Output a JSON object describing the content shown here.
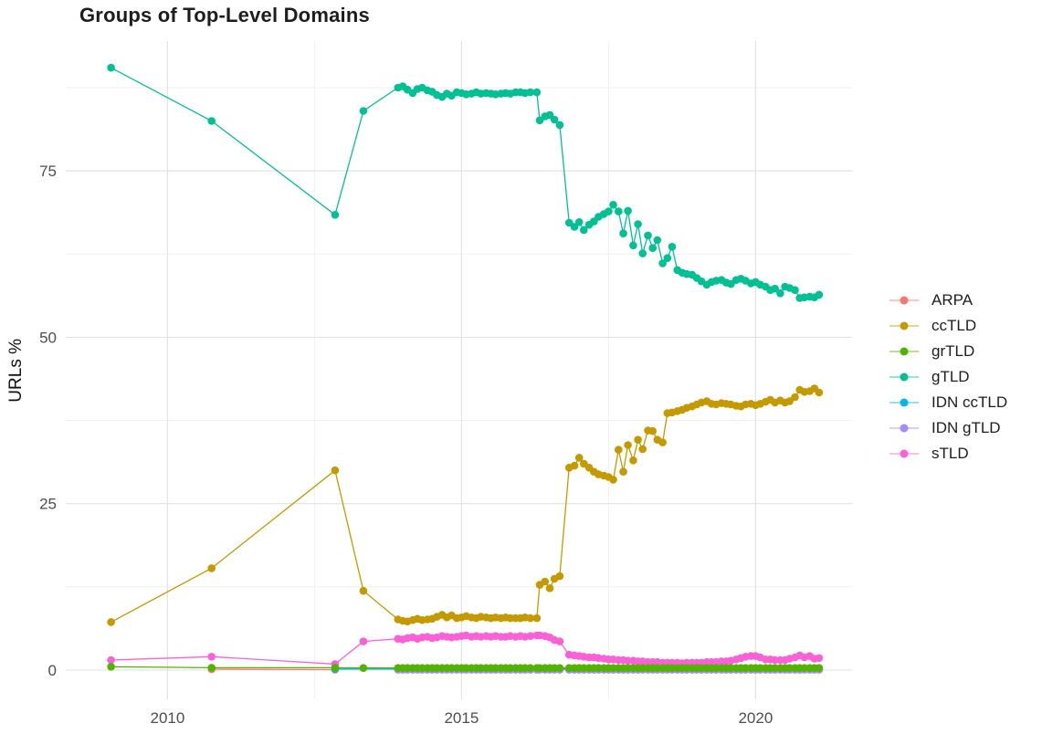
{
  "chart_data": {
    "type": "scatter",
    "title": "Groups of Top-Level Domains",
    "xlabel": "",
    "ylabel": "URLs %",
    "xlim": [
      2008.27,
      2021.64
    ],
    "ylim": [
      -4.4,
      94.5
    ],
    "grid": true,
    "legend_position": "right",
    "colors": {
      "grid_major": "#e3e3e3",
      "grid_minor": "#f1f1f1",
      "axis_text": "#4e4e4e",
      "title_text": "#1d1d1d"
    },
    "x_ticks": {
      "major": [
        2010,
        2015,
        2020
      ],
      "labels": [
        "2010",
        "2015",
        "2020"
      ],
      "minor": [
        2012.5,
        2017.5
      ]
    },
    "y_ticks": {
      "major": [
        0,
        25,
        50,
        75
      ],
      "labels": [
        "0",
        "25",
        "50",
        "75"
      ],
      "minor": [
        12.5,
        37.5,
        62.5,
        87.5
      ]
    },
    "x_dense": [
      2013.92,
      2014.0,
      2014.08,
      2014.17,
      2014.25,
      2014.33,
      2014.42,
      2014.5,
      2014.58,
      2014.67,
      2014.75,
      2014.83,
      2014.92,
      2015.0,
      2015.08,
      2015.17,
      2015.25,
      2015.33,
      2015.42,
      2015.5,
      2015.58,
      2015.67,
      2015.75,
      2015.83,
      2015.92,
      2016.0,
      2016.08,
      2016.17,
      2016.28,
      2016.33,
      2016.42,
      2016.5,
      2016.58,
      2016.67,
      2016.83,
      2016.92,
      2017.0,
      2017.08,
      2017.17,
      2017.25,
      2017.33,
      2017.42,
      2017.5,
      2017.58,
      2017.67,
      2017.75,
      2017.83,
      2017.92,
      2018.0,
      2018.08,
      2018.17,
      2018.25,
      2018.33,
      2018.42,
      2018.5,
      2018.58,
      2018.67,
      2018.75,
      2018.83,
      2018.92,
      2019.0,
      2019.08,
      2019.17,
      2019.25,
      2019.33,
      2019.42,
      2019.5,
      2019.58,
      2019.67,
      2019.75,
      2019.83,
      2019.92,
      2020.0,
      2020.08,
      2020.17,
      2020.25,
      2020.33,
      2020.42,
      2020.5,
      2020.58,
      2020.67,
      2020.75,
      2020.83,
      2020.92,
      2021.0,
      2021.08
    ],
    "draw_order": [
      "ARPA",
      "IDN ccTLD",
      "IDN gTLD",
      "sTLD",
      "ccTLD",
      "gTLD",
      "grTLD"
    ],
    "series": [
      {
        "name": "ARPA",
        "color": "#F8766D",
        "x": [
          2010.75,
          2012.85
        ],
        "y": [
          0.12,
          0.06
        ]
      },
      {
        "name": "ccTLD",
        "color": "#C49A00",
        "x_pre": [
          2009.04,
          2010.75,
          2012.85,
          2013.33
        ],
        "y_pre": [
          7.2,
          15.3,
          30.0,
          11.9
        ],
        "x_ref": "dense",
        "y": [
          7.6,
          7.4,
          7.3,
          7.5,
          7.7,
          7.5,
          7.6,
          7.7,
          8.0,
          8.3,
          7.9,
          8.2,
          7.8,
          7.9,
          8.1,
          7.9,
          7.8,
          8.0,
          7.9,
          7.8,
          7.9,
          7.8,
          7.9,
          7.8,
          7.8,
          7.8,
          7.9,
          7.8,
          7.8,
          12.8,
          13.3,
          12.3,
          13.7,
          14.1,
          30.4,
          30.7,
          31.9,
          31.0,
          30.4,
          29.8,
          29.4,
          29.2,
          29.0,
          28.6,
          33.1,
          29.8,
          33.8,
          31.5,
          34.6,
          33.2,
          36.0,
          35.9,
          34.6,
          34.2,
          38.6,
          38.7,
          38.9,
          39.1,
          39.4,
          39.6,
          39.9,
          40.2,
          40.4,
          40.0,
          39.9,
          40.1,
          40.0,
          39.9,
          39.7,
          39.6,
          39.9,
          40.0,
          39.8,
          40.0,
          40.3,
          40.6,
          40.2,
          40.5,
          40.2,
          40.4,
          41.0,
          42.1,
          41.8,
          41.9,
          42.3,
          41.7
        ]
      },
      {
        "name": "grTLD",
        "color": "#53B400",
        "x_pre": [
          2009.04,
          2010.75,
          2012.85,
          2013.33
        ],
        "y_pre": [
          0.5,
          0.35,
          0.35,
          0.3
        ],
        "x_ref": "dense",
        "y": [
          0.3,
          0.3,
          0.3,
          0.3,
          0.3,
          0.3,
          0.3,
          0.3,
          0.3,
          0.3,
          0.3,
          0.3,
          0.3,
          0.3,
          0.3,
          0.3,
          0.3,
          0.3,
          0.3,
          0.3,
          0.3,
          0.3,
          0.3,
          0.3,
          0.3,
          0.3,
          0.3,
          0.3,
          0.3,
          0.3,
          0.3,
          0.3,
          0.3,
          0.3,
          0.3,
          0.3,
          0.3,
          0.3,
          0.3,
          0.3,
          0.3,
          0.3,
          0.3,
          0.3,
          0.3,
          0.3,
          0.3,
          0.3,
          0.3,
          0.3,
          0.3,
          0.3,
          0.3,
          0.3,
          0.3,
          0.3,
          0.3,
          0.3,
          0.3,
          0.3,
          0.3,
          0.3,
          0.3,
          0.3,
          0.3,
          0.3,
          0.3,
          0.3,
          0.3,
          0.3,
          0.3,
          0.3,
          0.3,
          0.3,
          0.3,
          0.3,
          0.3,
          0.3,
          0.3,
          0.3,
          0.3,
          0.3,
          0.3,
          0.3,
          0.3,
          0.3
        ]
      },
      {
        "name": "gTLD",
        "color": "#00C094",
        "x_pre": [
          2009.04,
          2010.75,
          2012.85,
          2013.33
        ],
        "y_pre": [
          90.5,
          82.5,
          68.4,
          84.0
        ],
        "x_ref": "dense",
        "y": [
          87.5,
          87.7,
          87.2,
          86.7,
          87.3,
          87.5,
          87.1,
          86.9,
          86.4,
          86.1,
          86.6,
          86.3,
          86.8,
          86.7,
          86.5,
          86.6,
          86.8,
          86.6,
          86.7,
          86.6,
          86.5,
          86.6,
          86.7,
          86.6,
          86.8,
          86.8,
          86.7,
          86.8,
          86.8,
          82.6,
          83.2,
          83.4,
          82.7,
          81.9,
          67.2,
          66.6,
          67.3,
          66.1,
          66.9,
          67.4,
          68.1,
          68.5,
          68.9,
          69.9,
          68.9,
          65.6,
          69.0,
          63.8,
          67.0,
          62.6,
          65.3,
          63.4,
          64.6,
          61.1,
          61.9,
          63.6,
          60.1,
          59.7,
          59.5,
          59.4,
          58.9,
          58.4,
          57.9,
          58.3,
          58.5,
          58.6,
          58.2,
          58.0,
          58.6,
          58.8,
          58.5,
          58.1,
          58.3,
          57.9,
          57.6,
          57.1,
          57.3,
          56.6,
          57.6,
          57.4,
          57.1,
          55.9,
          56.0,
          56.1,
          56.0,
          56.4
        ]
      },
      {
        "name": "IDN ccTLD",
        "color": "#00B6EB",
        "x_pre": [
          2012.85
        ],
        "y_pre": [
          0.15
        ],
        "x_ref": "dense",
        "y": [
          0.15,
          0.15,
          0.15,
          0.15,
          0.15,
          0.15,
          0.15,
          0.15,
          0.15,
          0.15,
          0.15,
          0.15,
          0.15,
          0.15,
          0.15,
          0.15,
          0.15,
          0.15,
          0.15,
          0.15,
          0.15,
          0.15,
          0.15,
          0.15,
          0.15,
          0.15,
          0.15,
          0.15,
          0.15,
          0.15,
          0.15,
          0.15,
          0.15,
          0.15,
          0.15,
          0.15,
          0.15,
          0.15,
          0.15,
          0.15,
          0.15,
          0.15,
          0.15,
          0.15,
          0.15,
          0.15,
          0.15,
          0.15,
          0.15,
          0.15,
          0.15,
          0.15,
          0.15,
          0.15,
          0.15,
          0.15,
          0.15,
          0.15,
          0.15,
          0.15,
          0.15,
          0.15,
          0.15,
          0.15,
          0.15,
          0.15,
          0.15,
          0.15,
          0.15,
          0.15,
          0.15,
          0.15,
          0.15,
          0.15,
          0.15,
          0.15,
          0.15,
          0.15,
          0.15,
          0.15,
          0.15,
          0.15,
          0.15,
          0.15,
          0.15,
          0.15
        ]
      },
      {
        "name": "IDN gTLD",
        "color": "#A58AFF",
        "x_ref": "dense",
        "y": [
          0.05,
          0.05,
          0.05,
          0.05,
          0.05,
          0.05,
          0.05,
          0.05,
          0.05,
          0.05,
          0.05,
          0.05,
          0.05,
          0.05,
          0.05,
          0.05,
          0.05,
          0.05,
          0.05,
          0.05,
          0.05,
          0.05,
          0.05,
          0.05,
          0.05,
          0.05,
          0.05,
          0.05,
          0.05,
          0.05,
          0.05,
          0.05,
          0.05,
          0.05,
          0.05,
          0.05,
          0.05,
          0.05,
          0.05,
          0.05,
          0.05,
          0.05,
          0.05,
          0.05,
          0.05,
          0.05,
          0.05,
          0.05,
          0.05,
          0.05,
          0.05,
          0.05,
          0.05,
          0.05,
          0.05,
          0.05,
          0.05,
          0.05,
          0.05,
          0.05,
          0.05,
          0.05,
          0.05,
          0.05,
          0.05,
          0.05,
          0.05,
          0.05,
          0.05,
          0.05,
          0.05,
          0.05,
          0.05,
          0.05,
          0.05,
          0.05,
          0.05,
          0.05,
          0.05,
          0.05,
          0.05,
          0.05,
          0.05,
          0.05,
          0.05,
          0.05
        ]
      },
      {
        "name": "sTLD",
        "color": "#FB61D7",
        "x_pre": [
          2009.04,
          2010.75,
          2012.85,
          2013.33
        ],
        "y_pre": [
          1.5,
          2.0,
          0.9,
          4.3
        ],
        "x_ref": "dense",
        "y": [
          4.7,
          4.6,
          4.8,
          4.9,
          4.7,
          4.9,
          5.0,
          4.8,
          4.9,
          5.1,
          5.0,
          4.9,
          5.0,
          5.1,
          5.2,
          5.0,
          5.1,
          5.0,
          5.1,
          5.0,
          5.1,
          5.0,
          5.0,
          5.1,
          5.0,
          5.1,
          5.0,
          5.1,
          5.2,
          5.2,
          5.1,
          4.9,
          4.5,
          4.3,
          2.3,
          2.2,
          2.1,
          2.0,
          1.9,
          1.9,
          1.8,
          1.7,
          1.6,
          1.6,
          1.5,
          1.5,
          1.4,
          1.4,
          1.3,
          1.3,
          1.2,
          1.2,
          1.2,
          1.1,
          1.1,
          1.1,
          1.1,
          1.0,
          1.1,
          1.1,
          1.1,
          1.1,
          1.2,
          1.2,
          1.2,
          1.3,
          1.3,
          1.4,
          1.6,
          1.8,
          2.0,
          2.1,
          2.1,
          1.9,
          1.6,
          1.6,
          1.5,
          1.5,
          1.5,
          1.7,
          1.9,
          2.2,
          1.9,
          2.1,
          1.7,
          1.8
        ]
      }
    ]
  }
}
